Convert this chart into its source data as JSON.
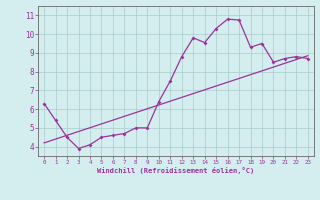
{
  "xlabel": "Windchill (Refroidissement éolien,°C)",
  "ylabel": "",
  "bg_color": "#d4eef0",
  "grid_color": "#aacccc",
  "line_color": "#993399",
  "spine_color": "#666666",
  "xlim": [
    -0.5,
    23.5
  ],
  "ylim": [
    3.5,
    11.5
  ],
  "xticks": [
    0,
    1,
    2,
    3,
    4,
    5,
    6,
    7,
    8,
    9,
    10,
    11,
    12,
    13,
    14,
    15,
    16,
    17,
    18,
    19,
    20,
    21,
    22,
    23
  ],
  "yticks": [
    4,
    5,
    6,
    7,
    8,
    9,
    10,
    11
  ],
  "curve1_x": [
    0,
    1,
    2,
    3,
    4,
    5,
    6,
    7,
    8,
    9,
    10,
    11,
    12,
    13,
    14,
    15,
    16,
    17,
    18,
    19,
    20,
    21,
    22,
    23
  ],
  "curve1_y": [
    6.3,
    5.4,
    4.5,
    3.9,
    4.1,
    4.5,
    4.6,
    4.7,
    5.0,
    5.0,
    6.4,
    7.5,
    8.8,
    9.8,
    9.55,
    10.3,
    10.8,
    10.75,
    9.3,
    9.5,
    8.5,
    8.7,
    8.8,
    8.7
  ],
  "curve2_x": [
    0,
    23
  ],
  "curve2_y": [
    4.2,
    8.85
  ]
}
